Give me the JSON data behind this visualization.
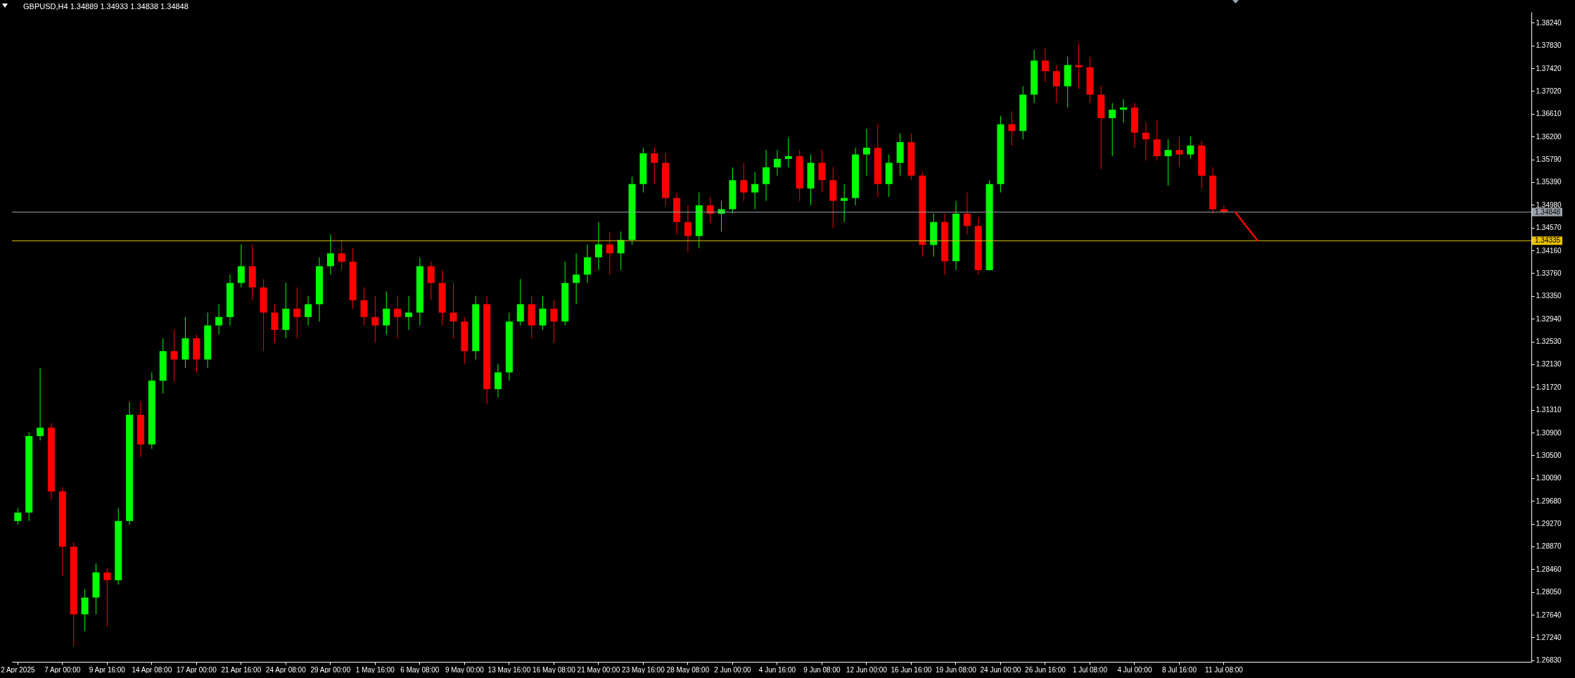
{
  "chart_data": {
    "type": "candlestick",
    "title": "GBPUSD,H4  1.34889 1.34933 1.34838 1.34848",
    "categories": [
      "2 Apr 2025",
      null,
      null,
      null,
      "7 Apr 00:00",
      null,
      null,
      null,
      "9 Apr 16:00",
      null,
      null,
      null,
      "14 Apr 08:00",
      null,
      null,
      null,
      "17 Apr 00:00",
      null,
      null,
      null,
      "21 Apr 16:00",
      null,
      null,
      null,
      "24 Apr 08:00",
      null,
      null,
      null,
      "29 Apr 00:00",
      null,
      null,
      null,
      "1 May 16:00",
      null,
      null,
      null,
      "6 May 08:00",
      null,
      null,
      null,
      "9 May 00:00",
      null,
      null,
      null,
      "13 May 16:00",
      null,
      null,
      null,
      "16 May 08:00",
      null,
      null,
      null,
      "21 May 00:00",
      null,
      null,
      null,
      "23 May 16:00",
      null,
      null,
      null,
      "28 May 08:00",
      null,
      null,
      null,
      "2 Jun 00:00",
      null,
      null,
      null,
      "4 Jun 16:00",
      null,
      null,
      null,
      "9 Jun 08:00",
      null,
      null,
      null,
      "12 Jun 00:00",
      null,
      null,
      null,
      "16 Jun 16:00",
      null,
      null,
      null,
      "19 Jun 08:00",
      null,
      null,
      null,
      "24 Jun 00:00",
      null,
      null,
      null,
      "26 Jun 16:00",
      null,
      null,
      null,
      "1 Jul 08:00",
      null,
      null,
      null,
      "4 Jul 00:00",
      null,
      null,
      null,
      "8 Jul 16:00",
      null,
      null,
      null,
      "11 Jul 08:00",
      null,
      null,
      null,
      null,
      null,
      null,
      null,
      null,
      null,
      null,
      null,
      null,
      null,
      null,
      null,
      null,
      null,
      null,
      null,
      null,
      null,
      null,
      null,
      null,
      null,
      null,
      null
    ],
    "ohlc": [
      [
        1.2932,
        1.2955,
        1.2925,
        1.2947
      ],
      [
        1.2947,
        1.3091,
        1.2932,
        1.3084
      ],
      [
        1.3084,
        1.3206,
        1.3076,
        1.3099
      ],
      [
        1.3099,
        1.3107,
        1.297,
        1.2985
      ],
      [
        1.2985,
        1.2993,
        1.2833,
        1.2886
      ],
      [
        1.2886,
        1.2894,
        1.2708,
        1.2765
      ],
      [
        1.2765,
        1.281,
        1.2735,
        1.2795
      ],
      [
        1.2795,
        1.2856,
        1.2765,
        1.284
      ],
      [
        1.284,
        1.2848,
        1.2743,
        1.2826
      ],
      [
        1.2826,
        1.2955,
        1.2818,
        1.2932
      ],
      [
        1.2932,
        1.3145,
        1.2925,
        1.3122
      ],
      [
        1.3122,
        1.3145,
        1.3046,
        1.3069
      ],
      [
        1.3069,
        1.3198,
        1.3061,
        1.3183
      ],
      [
        1.3183,
        1.3259,
        1.316,
        1.3236
      ],
      [
        1.3236,
        1.3274,
        1.3183,
        1.3221
      ],
      [
        1.3221,
        1.3297,
        1.3206,
        1.3259
      ],
      [
        1.3259,
        1.3266,
        1.3198,
        1.3221
      ],
      [
        1.3221,
        1.3305,
        1.3206,
        1.3282
      ],
      [
        1.3282,
        1.332,
        1.3266,
        1.3297
      ],
      [
        1.3297,
        1.3373,
        1.3282,
        1.3358
      ],
      [
        1.3358,
        1.3427,
        1.335,
        1.3388
      ],
      [
        1.3388,
        1.3427,
        1.3327,
        1.335
      ],
      [
        1.335,
        1.3365,
        1.3236,
        1.3305
      ],
      [
        1.3305,
        1.332,
        1.3251,
        1.3274
      ],
      [
        1.3274,
        1.3358,
        1.3259,
        1.3312
      ],
      [
        1.3312,
        1.335,
        1.3259,
        1.3297
      ],
      [
        1.3297,
        1.3335,
        1.3282,
        1.332
      ],
      [
        1.332,
        1.3404,
        1.3289,
        1.3388
      ],
      [
        1.3388,
        1.3445,
        1.3373,
        1.3411
      ],
      [
        1.3411,
        1.3435,
        1.3381,
        1.3396
      ],
      [
        1.3396,
        1.342,
        1.3312,
        1.3327
      ],
      [
        1.3327,
        1.335,
        1.3282,
        1.3297
      ],
      [
        1.3297,
        1.3335,
        1.3251,
        1.3282
      ],
      [
        1.3282,
        1.3343,
        1.3266,
        1.3312
      ],
      [
        1.3312,
        1.3335,
        1.3259,
        1.3297
      ],
      [
        1.3297,
        1.3335,
        1.3274,
        1.3305
      ],
      [
        1.3305,
        1.3404,
        1.3282,
        1.3388
      ],
      [
        1.3388,
        1.3396,
        1.3327,
        1.3358
      ],
      [
        1.3358,
        1.3381,
        1.3282,
        1.3305
      ],
      [
        1.3305,
        1.3358,
        1.3259,
        1.3289
      ],
      [
        1.3289,
        1.3297,
        1.3213,
        1.3236
      ],
      [
        1.3236,
        1.3335,
        1.3221,
        1.332
      ],
      [
        1.332,
        1.3335,
        1.3141,
        1.3168
      ],
      [
        1.3168,
        1.3213,
        1.3153,
        1.3198
      ],
      [
        1.3198,
        1.3305,
        1.3183,
        1.3289
      ],
      [
        1.3289,
        1.3365,
        1.3282,
        1.332
      ],
      [
        1.332,
        1.3335,
        1.3259,
        1.3282
      ],
      [
        1.3282,
        1.3335,
        1.3274,
        1.3312
      ],
      [
        1.3312,
        1.3327,
        1.3251,
        1.3289
      ],
      [
        1.3289,
        1.3396,
        1.3282,
        1.3358
      ],
      [
        1.3358,
        1.3411,
        1.332,
        1.3373
      ],
      [
        1.3373,
        1.3427,
        1.3358,
        1.3404
      ],
      [
        1.3404,
        1.3467,
        1.3381,
        1.3427
      ],
      [
        1.3427,
        1.345,
        1.3373,
        1.3411
      ],
      [
        1.3411,
        1.345,
        1.3381,
        1.3435
      ],
      [
        1.3435,
        1.3548,
        1.3426,
        1.3535
      ],
      [
        1.3535,
        1.36,
        1.352,
        1.359
      ],
      [
        1.359,
        1.36,
        1.3535,
        1.3573
      ],
      [
        1.3573,
        1.359,
        1.3497,
        1.351
      ],
      [
        1.351,
        1.352,
        1.3445,
        1.3467
      ],
      [
        1.3467,
        1.3497,
        1.3413,
        1.3442
      ],
      [
        1.3442,
        1.352,
        1.342,
        1.3497
      ],
      [
        1.3497,
        1.3512,
        1.3465,
        1.3482
      ],
      [
        1.3482,
        1.3505,
        1.345,
        1.349
      ],
      [
        1.349,
        1.3565,
        1.3482,
        1.3542
      ],
      [
        1.3542,
        1.3573,
        1.3505,
        1.352
      ],
      [
        1.352,
        1.3557,
        1.349,
        1.3535
      ],
      [
        1.3535,
        1.3596,
        1.3505,
        1.3565
      ],
      [
        1.3565,
        1.3596,
        1.355,
        1.358
      ],
      [
        1.358,
        1.3618,
        1.3565,
        1.3585
      ],
      [
        1.3585,
        1.3596,
        1.3505,
        1.3527
      ],
      [
        1.3527,
        1.3588,
        1.3497,
        1.3573
      ],
      [
        1.3573,
        1.3596,
        1.352,
        1.3542
      ],
      [
        1.3542,
        1.3565,
        1.3457,
        1.3505
      ],
      [
        1.3505,
        1.3535,
        1.3467,
        1.351
      ],
      [
        1.351,
        1.36,
        1.3497,
        1.3588
      ],
      [
        1.3588,
        1.3634,
        1.355,
        1.36
      ],
      [
        1.36,
        1.3642,
        1.3512,
        1.3535
      ],
      [
        1.3535,
        1.3588,
        1.3512,
        1.3573
      ],
      [
        1.3573,
        1.3626,
        1.355,
        1.361
      ],
      [
        1.361,
        1.3626,
        1.3542,
        1.355
      ],
      [
        1.355,
        1.3557,
        1.3405,
        1.3426
      ],
      [
        1.3426,
        1.3482,
        1.3405,
        1.3467
      ],
      [
        1.3467,
        1.3482,
        1.3373,
        1.3397
      ],
      [
        1.3397,
        1.3505,
        1.3381,
        1.3482
      ],
      [
        1.3482,
        1.352,
        1.3445,
        1.346
      ],
      [
        1.346,
        1.3475,
        1.3372,
        1.3381
      ],
      [
        1.3381,
        1.3542,
        1.338,
        1.3535
      ],
      [
        1.3535,
        1.3657,
        1.352,
        1.3642
      ],
      [
        1.3642,
        1.3665,
        1.3604,
        1.363
      ],
      [
        1.363,
        1.371,
        1.3615,
        1.3695
      ],
      [
        1.3695,
        1.3775,
        1.368,
        1.3756
      ],
      [
        1.3756,
        1.3779,
        1.3718,
        1.3737
      ],
      [
        1.3737,
        1.3748,
        1.368,
        1.371
      ],
      [
        1.371,
        1.3763,
        1.3672,
        1.3748
      ],
      [
        1.3748,
        1.3786,
        1.3705,
        1.3744
      ],
      [
        1.3744,
        1.3763,
        1.368,
        1.3695
      ],
      [
        1.3695,
        1.371,
        1.3562,
        1.3653
      ],
      [
        1.3653,
        1.368,
        1.3585,
        1.3668
      ],
      [
        1.3668,
        1.3687,
        1.3645,
        1.3672
      ],
      [
        1.3672,
        1.368,
        1.36,
        1.3627
      ],
      [
        1.3627,
        1.3645,
        1.3577,
        1.3615
      ],
      [
        1.3615,
        1.365,
        1.3577,
        1.3585
      ],
      [
        1.3585,
        1.3615,
        1.3532,
        1.3596
      ],
      [
        1.3596,
        1.362,
        1.3565,
        1.3588
      ],
      [
        1.3588,
        1.362,
        1.358,
        1.3604
      ],
      [
        1.3604,
        1.3612,
        1.3527,
        1.355
      ],
      [
        1.355,
        1.3565,
        1.3482,
        1.349
      ],
      [
        1.349,
        1.3497,
        1.3482,
        1.3485
      ],
      null,
      null,
      null,
      null,
      null,
      null,
      null,
      null,
      null,
      null,
      null,
      null,
      null,
      null,
      null,
      null,
      null,
      null,
      null,
      null,
      null,
      null,
      null,
      null,
      null,
      null,
      null
    ],
    "colors": [
      "#00ff00",
      "#00ff00",
      "#00ff00",
      "#ff0000",
      "#ff0000",
      "#ff0000",
      "#00ff00",
      "#00ff00",
      "#ff0000",
      "#00ff00",
      "#00ff00",
      "#ff0000",
      "#00ff00",
      "#00ff00",
      "#ff0000",
      "#00ff00",
      "#ff0000",
      "#00ff00",
      "#00ff00",
      "#00ff00",
      "#00ff00",
      "#ff0000",
      "#ff0000",
      "#ff0000",
      "#00ff00",
      "#ff0000",
      "#00ff00",
      "#00ff00",
      "#00ff00",
      "#ff0000",
      "#ff0000",
      "#ff0000",
      "#ff0000",
      "#00ff00",
      "#ff0000",
      "#00ff00",
      "#00ff00",
      "#ff0000",
      "#ff0000",
      "#ff0000",
      "#ff0000",
      "#00ff00",
      "#ff0000",
      "#00ff00",
      "#00ff00",
      "#00ff00",
      "#ff0000",
      "#00ff00",
      "#ff0000",
      "#00ff00",
      "#00ff00",
      "#00ff00",
      "#00ff00",
      "#ff0000",
      "#00ff00",
      "#00ff00",
      "#00ff00",
      "#ff0000",
      "#ff0000",
      "#ff0000",
      "#ff0000",
      "#00ff00",
      "#ff0000",
      "#00ff00",
      "#00ff00",
      "#ff0000",
      "#00ff00",
      "#00ff00",
      "#00ff00",
      "#00ff00",
      "#ff0000",
      "#00ff00",
      "#ff0000",
      "#ff0000",
      "#00ff00",
      "#00ff00",
      "#00ff00",
      "#ff0000",
      "#00ff00",
      "#00ff00",
      "#ff0000",
      "#ff0000",
      "#00ff00",
      "#ff0000",
      "#00ff00",
      "#ff0000",
      "#ff0000",
      "#00ff00",
      "#00ff00",
      "#ff0000",
      "#00ff00",
      "#00ff00",
      "#ff0000",
      "#ff0000",
      "#00ff00",
      "#ff0000",
      "#ff0000",
      "#ff0000",
      "#00ff00",
      "#00ff00",
      "#ff0000",
      "#ff0000",
      "#ff0000",
      "#00ff00",
      "#ff0000",
      "#00ff00",
      "#ff0000",
      "#ff0000",
      "#ff0000",
      null,
      null,
      null,
      null,
      null,
      null,
      null,
      null,
      null,
      null,
      null,
      null,
      null,
      null,
      null,
      null,
      null,
      null,
      null,
      null,
      null,
      null,
      null,
      null,
      null,
      null,
      null
    ],
    "series": [
      {
        "type": "line",
        "color": "#ff0000",
        "values": [
          null,
          null,
          null,
          null,
          null,
          null,
          null,
          null,
          null,
          null,
          null,
          null,
          null,
          null,
          null,
          null,
          null,
          null,
          null,
          null,
          null,
          null,
          null,
          null,
          null,
          null,
          null,
          null,
          null,
          null,
          null,
          null,
          null,
          null,
          null,
          null,
          null,
          null,
          null,
          null,
          null,
          null,
          null,
          null,
          null,
          null,
          null,
          null,
          null,
          null,
          null,
          null,
          null,
          null,
          null,
          null,
          null,
          null,
          null,
          null,
          null,
          null,
          null,
          null,
          null,
          null,
          null,
          null,
          null,
          null,
          null,
          null,
          null,
          null,
          null,
          null,
          null,
          null,
          null,
          null,
          null,
          null,
          null,
          null,
          null,
          null,
          null,
          null,
          null,
          null,
          null,
          null,
          null,
          null,
          null,
          null,
          null,
          null,
          null,
          null,
          null,
          null,
          null,
          null,
          null,
          null,
          null,
          null,
          null,
          1.3485,
          null,
          1.3434,
          null,
          null,
          null,
          null,
          null,
          null,
          null,
          null,
          null,
          null,
          null,
          null,
          null,
          null,
          null,
          null,
          null,
          null,
          null,
          null,
          null,
          null,
          null,
          null
        ]
      }
    ],
    "ylim": [
      1.268,
      1.3843
    ],
    "yticks": [
      {
        "value": 1.3824,
        "label": "1.38240"
      },
      {
        "value": 1.3783,
        "label": "1.37830"
      },
      {
        "value": 1.3742,
        "label": "1.37420"
      },
      {
        "value": 1.3702,
        "label": "1.37020"
      },
      {
        "value": 1.3661,
        "label": "1.36610"
      },
      {
        "value": 1.362,
        "label": "1.36200"
      },
      {
        "value": 1.3579,
        "label": "1.35790"
      },
      {
        "value": 1.3539,
        "label": "1.35390"
      },
      {
        "value": 1.3498,
        "label": "1.34980"
      },
      {
        "value": 1.3457,
        "label": "1.34570"
      },
      {
        "value": 1.3416,
        "label": "1.34160"
      },
      {
        "value": 1.3376,
        "label": "1.33760"
      },
      {
        "value": 1.3335,
        "label": "1.33350"
      },
      {
        "value": 1.3294,
        "label": "1.32940"
      },
      {
        "value": 1.3253,
        "label": "1.32530"
      },
      {
        "value": 1.3213,
        "label": "1.32130"
      },
      {
        "value": 1.3172,
        "label": "1.31720"
      },
      {
        "value": 1.3131,
        "label": "1.31310"
      },
      {
        "value": 1.309,
        "label": "1.30900"
      },
      {
        "value": 1.305,
        "label": "1.30500"
      },
      {
        "value": 1.3009,
        "label": "1.30090"
      },
      {
        "value": 1.2968,
        "label": "1.29680"
      },
      {
        "value": 1.2927,
        "label": "1.29270"
      },
      {
        "value": 1.2887,
        "label": "1.28870"
      },
      {
        "value": 1.2846,
        "label": "1.28460"
      },
      {
        "value": 1.2805,
        "label": "1.28050"
      },
      {
        "value": 1.2764,
        "label": "1.27640"
      },
      {
        "value": 1.2724,
        "label": "1.27240"
      },
      {
        "value": 1.2683,
        "label": "1.26830"
      }
    ],
    "ref_lines": [
      {
        "axis": "y",
        "value": 1.34848,
        "label": "1.34848",
        "color": "#9aa3ab"
      },
      {
        "axis": "y",
        "value": 1.34335,
        "label": "1.34335",
        "color": "#e8c000"
      }
    ]
  }
}
